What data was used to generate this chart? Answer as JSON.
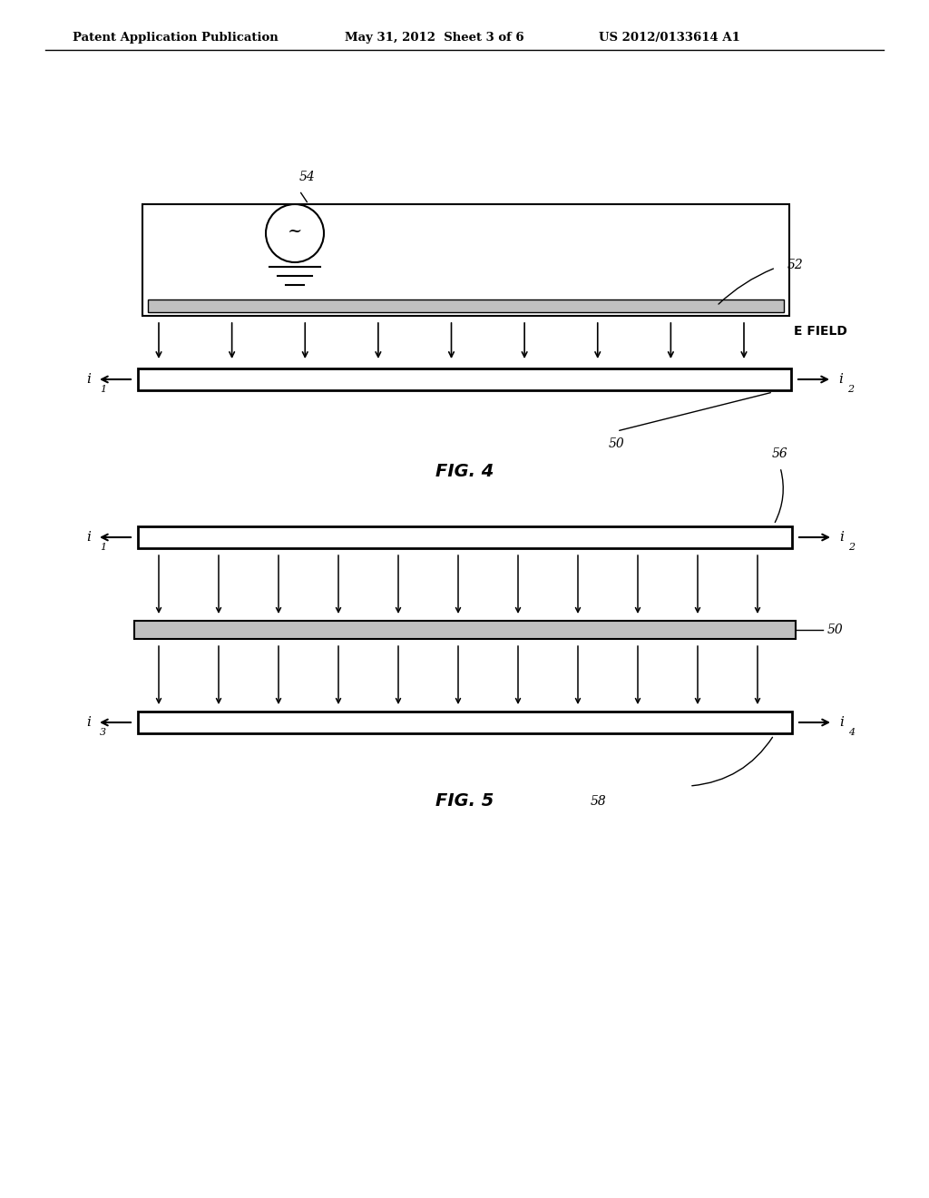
{
  "bg_color": "#ffffff",
  "header_left": "Patent Application Publication",
  "header_mid": "May 31, 2012  Sheet 3 of 6",
  "header_right": "US 2012/0133614 A1",
  "fig4_label": "FIG. 4",
  "fig5_label": "FIG. 5",
  "fig4_ref54": "54",
  "fig4_ref52": "52",
  "fig4_ref50": "50",
  "fig4_efield": "E FIELD",
  "fig4_i1": "i",
  "fig4_i1_sub": "1",
  "fig4_i2": "i",
  "fig4_i2_sub": "2",
  "fig5_ref56": "56",
  "fig5_ref50": "50",
  "fig5_ref58": "58",
  "fig5_i1": "i",
  "fig5_i1_sub": "1",
  "fig5_i2": "i",
  "fig5_i2_sub": "2",
  "fig5_i3": "i",
  "fig5_i3_sub": "3",
  "fig5_i4": "i",
  "fig5_i4_sub": "4",
  "bar_face_light": "#e8e8e8",
  "bar_face_medium": "#c0c0c0",
  "bar_edge": "#000000"
}
